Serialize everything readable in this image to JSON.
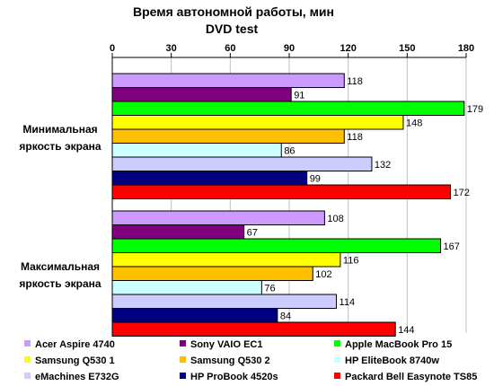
{
  "chart_data": {
    "type": "bar",
    "orientation": "horizontal",
    "title": "Время автономной работы, мин",
    "subtitle": "DVD test",
    "xlim": [
      0,
      180
    ],
    "x_ticks": [
      0,
      30,
      60,
      90,
      120,
      150,
      180
    ],
    "x_tick_labels": [
      "0",
      "30",
      "60",
      "90",
      "120",
      "150",
      "180"
    ],
    "grid": true,
    "legend_position": "bottom",
    "categories": [
      {
        "line1": "Минимальная",
        "line2": "яркость экрана"
      },
      {
        "line1": "Максимальная",
        "line2": "яркость экрана"
      }
    ],
    "series": [
      {
        "name": "Acer Aspire 4740",
        "color": "#cc99ff",
        "values": [
          118,
          108
        ]
      },
      {
        "name": "Sony VAIO EC1",
        "color": "#800080",
        "values": [
          91,
          67
        ]
      },
      {
        "name": "Apple MacBook Pro 15",
        "color": "#00ff00",
        "values": [
          179,
          167
        ]
      },
      {
        "name": "Samsung Q530 1",
        "color": "#ffff00",
        "values": [
          148,
          116
        ]
      },
      {
        "name": "Samsung Q530 2",
        "color": "#ffc000",
        "values": [
          118,
          102
        ]
      },
      {
        "name": "HP EliteBook 8740w",
        "color": "#ccffff",
        "values": [
          86,
          76
        ]
      },
      {
        "name": "eMachines E732G",
        "color": "#ccccff",
        "values": [
          132,
          114
        ]
      },
      {
        "name": "HP ProBook 4520s",
        "color": "#000080",
        "values": [
          99,
          84
        ]
      },
      {
        "name": "Packard Bell Easynote TS85",
        "color": "#ff0000",
        "values": [
          172,
          144
        ]
      }
    ]
  }
}
